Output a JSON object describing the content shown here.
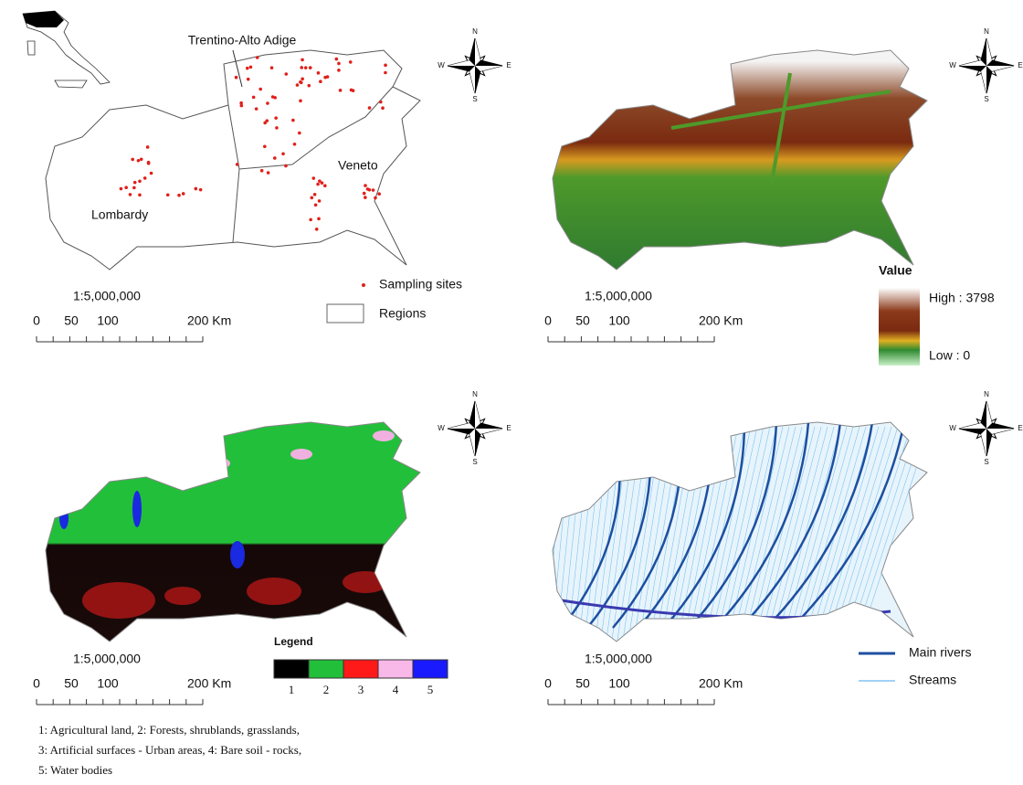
{
  "compass": [
    "N",
    "E",
    "S",
    "W"
  ],
  "panels": [
    {
      "labels": [
        "Trentino-Alto Adige",
        "Veneto",
        "Lombardy"
      ],
      "scale": {
        "ratio": "1:5,000,000",
        "ticks": [
          "0",
          "50",
          "100",
          "200 Km"
        ]
      },
      "legend": [
        "Sampling sites",
        "Regions"
      ]
    },
    {
      "scale": {
        "ratio": "1:5,000,000",
        "ticks": [
          "0",
          "50",
          "100",
          "200 Km"
        ]
      },
      "legend": {
        "title": "Value",
        "high": "High : 3798",
        "low": "Low : 0"
      }
    },
    {
      "scale": {
        "ratio": "1:5,000,000",
        "ticks": [
          "0",
          "50",
          "100",
          "200 Km"
        ]
      },
      "legend": {
        "title": "Legend",
        "classes": [
          "1",
          "2",
          "3",
          "4",
          "5"
        ]
      }
    },
    {
      "scale": {
        "ratio": "1:5,000,000",
        "ticks": [
          "0",
          "50",
          "100",
          "200 Km"
        ]
      },
      "legend": [
        "Main rivers",
        "Streams"
      ]
    }
  ],
  "caption": [
    "1: Agricultural land, 2: Forests, shrublands, grasslands,",
    "3: Artificial surfaces - Urban areas, 4: Bare soil - rocks,",
    "5: Water bodies"
  ]
}
